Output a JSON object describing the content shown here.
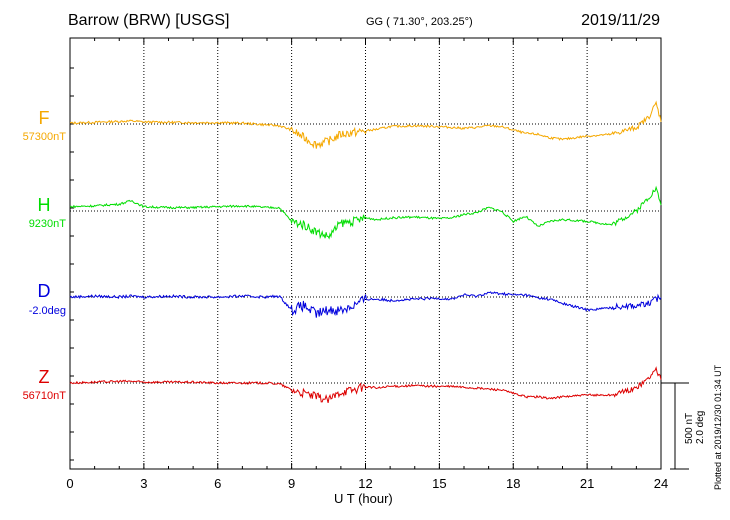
{
  "header": {
    "station": "Barrow (BRW)  [USGS]",
    "coords": "GG ( 71.30°, 203.25°)",
    "date": "2019/11/29"
  },
  "components": [
    {
      "letter": "F",
      "baseline": "57300nT",
      "color": "#f5a800"
    },
    {
      "letter": "H",
      "baseline": "9230nT",
      "color": "#00dd00"
    },
    {
      "letter": "D",
      "baseline": "-2.0deg",
      "color": "#0000dd"
    },
    {
      "letter": "Z",
      "baseline": "56710nT",
      "color": "#dd0000"
    }
  ],
  "scale_bar": {
    "line1": "500 nT",
    "line2": "2.0 deg"
  },
  "footer": "Plotted at 2019/12/30 01:34 UT",
  "chart_data": {
    "type": "line",
    "xlabel": "U T (hour)",
    "xlim": [
      0,
      24
    ],
    "x_ticks": [
      0,
      3,
      6,
      9,
      12,
      15,
      18,
      21,
      24
    ],
    "x_tick_labels": [
      "0",
      "3",
      "6",
      "9",
      "12",
      "15",
      "18",
      "21",
      "24"
    ],
    "grid": "dotted vertical lines every 3 hours, dotted baseline per trace",
    "x": [
      0,
      1,
      2,
      2.5,
      3,
      4,
      5,
      6,
      7,
      8,
      8.5,
      9,
      9.5,
      10,
      10.5,
      11,
      11.5,
      12,
      12.5,
      13,
      14,
      15,
      15.5,
      16,
      16.5,
      17,
      17.5,
      18,
      18.5,
      19,
      19.5,
      20,
      21,
      22,
      22.5,
      23,
      23.5,
      23.8,
      24
    ],
    "series": [
      {
        "name": "F",
        "unit": "nT",
        "baseline": 57300,
        "values": [
          5,
          10,
          15,
          18,
          12,
          10,
          8,
          8,
          5,
          -5,
          -10,
          -35,
          -80,
          -120,
          -100,
          -60,
          -50,
          -40,
          -30,
          -15,
          -10,
          -15,
          -20,
          -25,
          -20,
          -10,
          -15,
          -35,
          -55,
          -60,
          -80,
          -90,
          -70,
          -60,
          -40,
          -20,
          40,
          120,
          20
        ]
      },
      {
        "name": "H",
        "unit": "nT",
        "baseline": 9230,
        "values": [
          25,
          30,
          40,
          60,
          25,
          20,
          20,
          25,
          30,
          20,
          20,
          -60,
          -80,
          -120,
          -150,
          -70,
          -60,
          -40,
          -50,
          -40,
          -35,
          -45,
          -40,
          -20,
          -10,
          20,
          0,
          -60,
          -30,
          -90,
          -60,
          -50,
          -60,
          -80,
          -40,
          0,
          80,
          130,
          40
        ]
      },
      {
        "name": "D",
        "unit": "deg",
        "baseline": -2.0,
        "values": [
          0.0,
          0.02,
          0.0,
          0.02,
          0.0,
          0.02,
          0.0,
          0.0,
          0.02,
          0.0,
          0.02,
          -0.3,
          -0.2,
          -0.4,
          -0.3,
          -0.3,
          -0.2,
          -0.05,
          -0.05,
          -0.08,
          -0.05,
          -0.03,
          -0.05,
          0.05,
          0.02,
          0.1,
          0.08,
          0.05,
          0.05,
          -0.02,
          -0.05,
          -0.15,
          -0.3,
          -0.25,
          -0.2,
          -0.2,
          -0.15,
          -0.05,
          0.0
        ]
      },
      {
        "name": "Z",
        "unit": "nT",
        "baseline": 56710,
        "values": [
          0,
          5,
          10,
          10,
          5,
          5,
          5,
          0,
          0,
          0,
          -5,
          -40,
          -60,
          -80,
          -100,
          -50,
          -40,
          -20,
          -30,
          -20,
          -15,
          -20,
          -20,
          -25,
          -30,
          -35,
          -40,
          -60,
          -80,
          -80,
          -90,
          -80,
          -70,
          -70,
          -50,
          -30,
          30,
          80,
          20
        ]
      }
    ],
    "scale_bar_values": {
      "nT": 500,
      "deg": 2.0
    }
  }
}
